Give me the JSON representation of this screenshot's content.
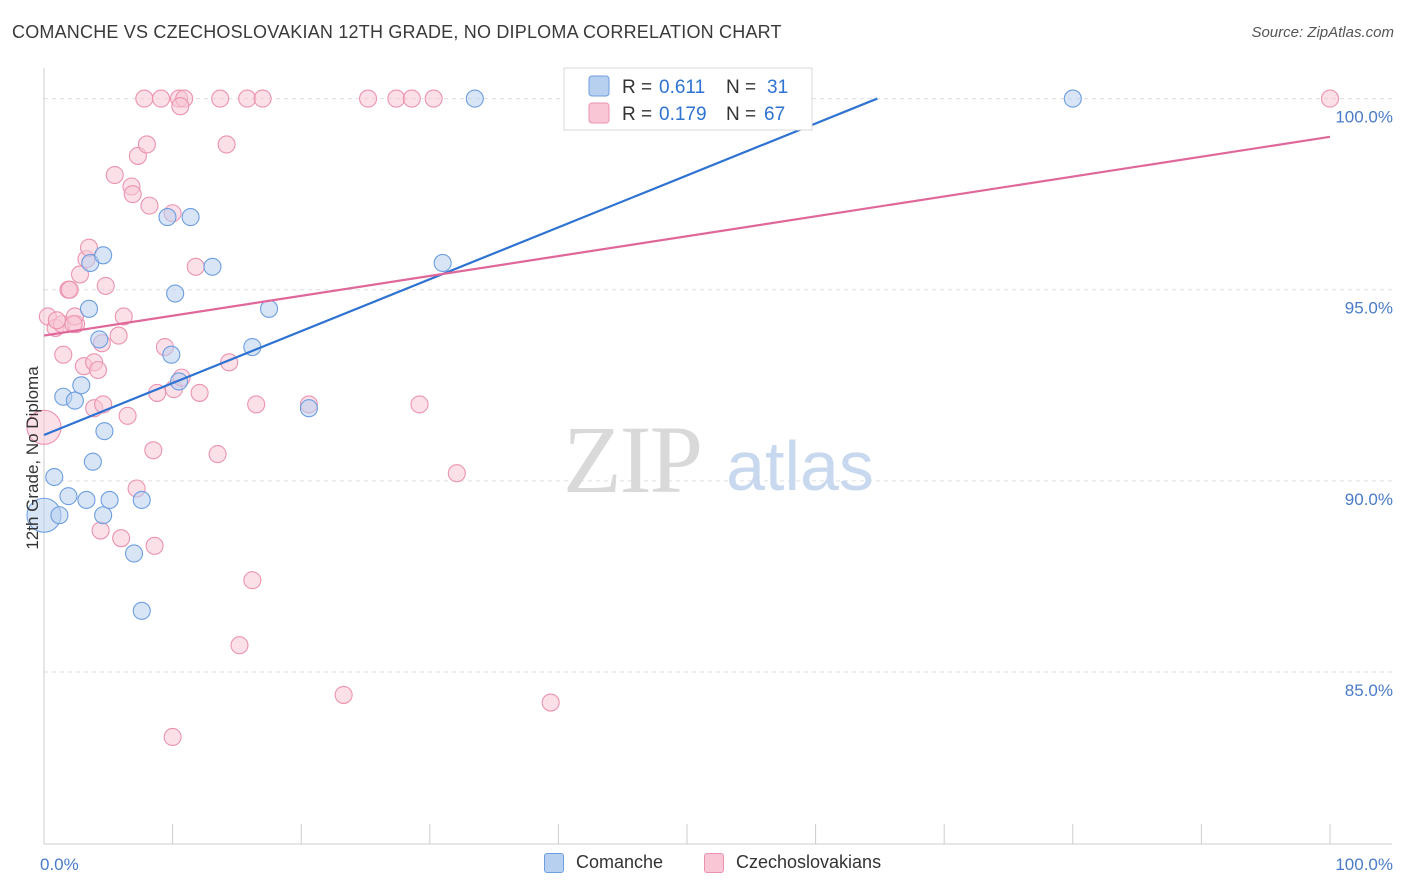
{
  "title": "COMANCHE VS CZECHOSLOVAKIAN 12TH GRADE, NO DIPLOMA CORRELATION CHART",
  "source": "Source: ZipAtlas.com",
  "watermark": {
    "zip": "ZIP",
    "atlas": "atlas"
  },
  "colors": {
    "blue_fill": "#b8d0f0",
    "blue_stroke": "#6d9ee0",
    "blue_line": "#2e72d2",
    "pink_fill": "#f8c6d5",
    "pink_stroke": "#ec93b0",
    "pink_line": "#e0679a",
    "axis_text": "#4a7bc8",
    "grid": "#dddddd"
  },
  "legend": {
    "rows": [
      {
        "r_label": "R =",
        "r_value": "0.611",
        "n_label": "N =",
        "n_value": "31",
        "series": "blue"
      },
      {
        "r_label": "R =",
        "r_value": "0.179",
        "n_label": "N =",
        "n_value": "67",
        "series": "pink"
      }
    ]
  },
  "bottom_legend": {
    "comanche": "Comanche",
    "czechoslovakians": "Czechoslovakians"
  },
  "chart_data": {
    "type": "scatter",
    "title": "COMANCHE VS CZECHOSLOVAKIAN 12TH GRADE, NO DIPLOMA CORRELATION CHART",
    "xlabel": "",
    "ylabel": "12th Grade, No Diploma",
    "xlim": [
      0,
      100
    ],
    "ylim": [
      80.5,
      100.8
    ],
    "y_ticks": [
      {
        "value": 100,
        "label": "100.0%"
      },
      {
        "value": 95,
        "label": "95.0%"
      },
      {
        "value": 90,
        "label": "90.0%"
      },
      {
        "value": 85,
        "label": "85.0%"
      }
    ],
    "x_tick_labels": [
      {
        "value": 0,
        "label": "0.0%"
      },
      {
        "value": 100,
        "label": "100.0%"
      }
    ],
    "x_minor_ticks": [
      0,
      10,
      20,
      30,
      40,
      50,
      60,
      70,
      80,
      90,
      100
    ],
    "series": [
      {
        "name": "Comanche",
        "color": "blue",
        "r": 0.611,
        "n": 31,
        "trend": {
          "x": [
            0,
            64.8
          ],
          "y": [
            91.2,
            100.0
          ]
        },
        "points": [
          [
            0.0,
            89.1,
            1
          ],
          [
            1.2,
            89.1,
            0
          ],
          [
            0.8,
            90.1,
            0
          ],
          [
            1.9,
            89.6,
            0
          ],
          [
            3.3,
            89.5,
            0
          ],
          [
            4.6,
            89.1,
            0
          ],
          [
            5.1,
            89.5,
            0
          ],
          [
            7.6,
            89.5,
            0
          ],
          [
            7.0,
            88.1,
            0
          ],
          [
            7.6,
            86.6,
            0
          ],
          [
            1.5,
            92.2,
            0
          ],
          [
            2.4,
            92.1,
            0
          ],
          [
            2.9,
            92.5,
            0
          ],
          [
            3.8,
            90.5,
            0
          ],
          [
            4.7,
            91.3,
            0
          ],
          [
            4.3,
            93.7,
            0
          ],
          [
            3.5,
            94.5,
            0
          ],
          [
            3.6,
            95.7,
            0
          ],
          [
            4.6,
            95.9,
            0
          ],
          [
            9.6,
            96.9,
            0
          ],
          [
            11.4,
            96.9,
            0
          ],
          [
            10.2,
            94.9,
            0
          ],
          [
            10.5,
            92.6,
            0
          ],
          [
            9.9,
            93.3,
            0
          ],
          [
            13.1,
            95.6,
            0
          ],
          [
            16.2,
            93.5,
            0
          ],
          [
            17.5,
            94.5,
            0
          ],
          [
            20.6,
            91.9,
            0
          ],
          [
            31.0,
            95.7,
            0
          ],
          [
            33.5,
            100.0,
            0
          ],
          [
            80.0,
            100.0,
            0
          ]
        ]
      },
      {
        "name": "Czechoslovakians",
        "color": "pink",
        "r": 0.179,
        "n": 67,
        "trend": {
          "x": [
            0,
            100
          ],
          "y": [
            93.8,
            99.0
          ]
        },
        "points": [
          [
            0.0,
            91.4,
            1
          ],
          [
            0.3,
            94.3,
            0
          ],
          [
            0.9,
            94.0,
            0
          ],
          [
            1.4,
            94.1,
            0
          ],
          [
            2.5,
            94.1,
            0
          ],
          [
            2.4,
            94.3,
            0
          ],
          [
            1.5,
            93.3,
            0
          ],
          [
            1.9,
            95.0,
            0
          ],
          [
            2.0,
            95.0,
            0
          ],
          [
            2.8,
            95.4,
            0
          ],
          [
            3.3,
            95.8,
            0
          ],
          [
            3.5,
            96.1,
            0
          ],
          [
            3.1,
            93.0,
            0
          ],
          [
            3.9,
            93.1,
            0
          ],
          [
            4.2,
            92.9,
            0
          ],
          [
            3.9,
            91.9,
            0
          ],
          [
            4.6,
            92.0,
            0
          ],
          [
            4.5,
            93.6,
            0
          ],
          [
            5.8,
            93.8,
            0
          ],
          [
            6.2,
            94.3,
            0
          ],
          [
            4.8,
            95.1,
            0
          ],
          [
            6.5,
            91.7,
            0
          ],
          [
            7.2,
            89.8,
            0
          ],
          [
            6.0,
            88.5,
            0
          ],
          [
            4.4,
            88.7,
            0
          ],
          [
            8.5,
            90.8,
            0
          ],
          [
            8.6,
            88.3,
            0
          ],
          [
            8.8,
            92.3,
            0
          ],
          [
            9.4,
            93.5,
            0
          ],
          [
            10.1,
            92.4,
            0
          ],
          [
            10.7,
            92.7,
            0
          ],
          [
            12.1,
            92.3,
            0
          ],
          [
            11.8,
            95.6,
            0
          ],
          [
            10.0,
            97.0,
            0
          ],
          [
            8.2,
            97.2,
            0
          ],
          [
            6.8,
            97.7,
            0
          ],
          [
            6.9,
            97.5,
            0
          ],
          [
            5.5,
            98.0,
            0
          ],
          [
            7.3,
            98.5,
            0
          ],
          [
            8.0,
            98.8,
            0
          ],
          [
            14.2,
            98.8,
            0
          ],
          [
            13.5,
            90.7,
            0
          ],
          [
            14.4,
            93.1,
            0
          ],
          [
            16.5,
            92.0,
            0
          ],
          [
            16.2,
            87.4,
            0
          ],
          [
            15.2,
            85.7,
            0
          ],
          [
            10.0,
            83.3,
            0
          ],
          [
            23.3,
            84.4,
            0
          ],
          [
            20.6,
            92.0,
            0
          ],
          [
            29.2,
            92.0,
            0
          ],
          [
            32.1,
            90.2,
            0
          ],
          [
            39.4,
            84.2,
            0
          ],
          [
            7.8,
            100.0,
            0
          ],
          [
            9.1,
            100.0,
            0
          ],
          [
            10.5,
            100.0,
            0
          ],
          [
            10.9,
            100.0,
            0
          ],
          [
            10.6,
            99.8,
            0
          ],
          [
            13.7,
            100.0,
            0
          ],
          [
            15.8,
            100.0,
            0
          ],
          [
            17.0,
            100.0,
            0
          ],
          [
            25.2,
            100.0,
            0
          ],
          [
            27.4,
            100.0,
            0
          ],
          [
            28.6,
            100.0,
            0
          ],
          [
            30.3,
            100.0,
            0
          ],
          [
            100.0,
            100.0,
            0
          ],
          [
            2.3,
            94.1,
            0
          ],
          [
            1.0,
            94.2,
            0
          ]
        ]
      }
    ]
  }
}
